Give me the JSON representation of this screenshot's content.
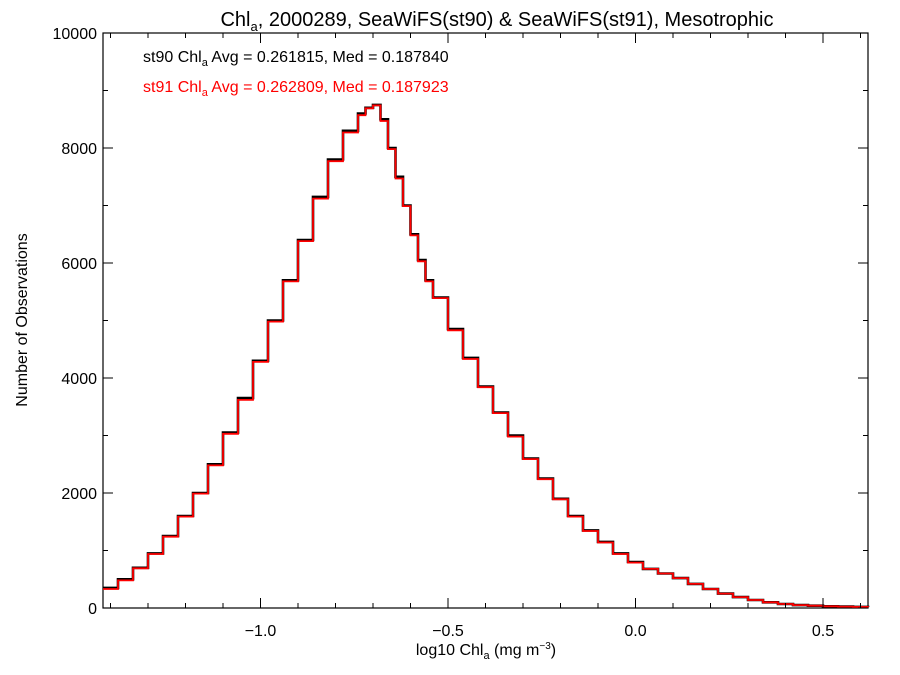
{
  "chart_data": {
    "type": "line",
    "title": {
      "pre": "Chl",
      "sub": "a",
      "post": ", 2000289, SeaWiFS(st90) & SeaWiFS(st91), Mesotrophic"
    },
    "xlabel": {
      "pre": "log10 Chl",
      "sub": "a",
      "mid": " (mg m",
      "sup": "−3",
      "post": ")"
    },
    "ylabel": "Number of Observations",
    "xlim": [
      -1.42,
      0.62
    ],
    "ylim": [
      0,
      10000
    ],
    "xticks": [
      -1.0,
      -0.5,
      0.0,
      0.5
    ],
    "xtick_labels": [
      "−1.0",
      "−0.5",
      "0.0",
      "0.5"
    ],
    "yticks": [
      0,
      2000,
      4000,
      6000,
      8000,
      10000
    ],
    "ytick_labels": [
      "0",
      "2000",
      "4000",
      "6000",
      "8000",
      "10000"
    ],
    "step": "histogram",
    "annotations": [
      {
        "pre": "st90 Chl",
        "sub": "a",
        "post": " Avg = 0.261815, Med = 0.187840",
        "color": "#000000"
      },
      {
        "pre": "st91 Chl",
        "sub": "a",
        "post": " Avg = 0.262809, Med = 0.187923",
        "color": "#ff0000"
      }
    ],
    "x": [
      -1.42,
      -1.38,
      -1.34,
      -1.3,
      -1.26,
      -1.22,
      -1.18,
      -1.14,
      -1.1,
      -1.06,
      -1.02,
      -0.98,
      -0.94,
      -0.9,
      -0.86,
      -0.82,
      -0.78,
      -0.74,
      -0.72,
      -0.7,
      -0.68,
      -0.66,
      -0.64,
      -0.62,
      -0.6,
      -0.58,
      -0.56,
      -0.54,
      -0.5,
      -0.46,
      -0.42,
      -0.38,
      -0.34,
      -0.3,
      -0.26,
      -0.22,
      -0.18,
      -0.14,
      -0.1,
      -0.06,
      -0.02,
      0.02,
      0.06,
      0.1,
      0.14,
      0.18,
      0.22,
      0.26,
      0.3,
      0.34,
      0.38,
      0.42,
      0.46,
      0.5,
      0.54,
      0.58,
      0.62
    ],
    "series": [
      {
        "name": "st90",
        "color": "#000000",
        "values": [
          350,
          500,
          700,
          950,
          1250,
          1600,
          2000,
          2500,
          3050,
          3650,
          4300,
          5000,
          5700,
          6400,
          7150,
          7800,
          8300,
          8600,
          8700,
          8750,
          8500,
          8000,
          7500,
          7000,
          6500,
          6050,
          5700,
          5400,
          4850,
          4350,
          3850,
          3400,
          3000,
          2600,
          2250,
          1900,
          1600,
          1350,
          1150,
          950,
          800,
          680,
          600,
          520,
          420,
          330,
          250,
          190,
          140,
          100,
          70,
          50,
          40,
          30,
          25,
          20,
          15
        ]
      },
      {
        "name": "st91",
        "color": "#ff0000",
        "values": [
          330,
          480,
          690,
          940,
          1240,
          1590,
          1990,
          2480,
          3030,
          3620,
          4280,
          4980,
          5680,
          6380,
          7120,
          7770,
          8270,
          8570,
          8690,
          8740,
          8470,
          7980,
          7470,
          6990,
          6480,
          6030,
          5680,
          5390,
          4830,
          4330,
          3840,
          3390,
          2980,
          2590,
          2240,
          1890,
          1590,
          1340,
          1140,
          940,
          790,
          680,
          600,
          520,
          420,
          330,
          250,
          190,
          140,
          100,
          70,
          50,
          40,
          30,
          25,
          20,
          15
        ]
      }
    ]
  }
}
